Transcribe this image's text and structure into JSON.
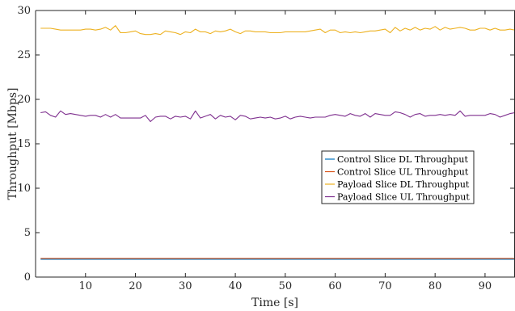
{
  "chart_data": {
    "type": "line",
    "xlabel": "Time [s]",
    "ylabel": "Throughput [Mbps]",
    "xlim": [
      0,
      96
    ],
    "ylim": [
      0,
      30
    ],
    "xticks": [
      "10",
      "20",
      "30",
      "40",
      "50",
      "60",
      "70",
      "80",
      "90"
    ],
    "yticks": [
      "0",
      "5",
      "10",
      "15",
      "20",
      "25",
      "30"
    ],
    "grid": false,
    "legend_position": "center-right",
    "x": [
      1,
      2,
      3,
      4,
      5,
      6,
      7,
      8,
      9,
      10,
      11,
      12,
      13,
      14,
      15,
      16,
      17,
      18,
      19,
      20,
      21,
      22,
      23,
      24,
      25,
      26,
      27,
      28,
      29,
      30,
      31,
      32,
      33,
      34,
      35,
      36,
      37,
      38,
      39,
      40,
      41,
      42,
      43,
      44,
      45,
      46,
      47,
      48,
      49,
      50,
      51,
      52,
      53,
      54,
      55,
      56,
      57,
      58,
      59,
      60,
      61,
      62,
      63,
      64,
      65,
      66,
      67,
      68,
      69,
      70,
      71,
      72,
      73,
      74,
      75,
      76,
      77,
      78,
      79,
      80,
      81,
      82,
      83,
      84,
      85,
      86,
      87,
      88,
      89,
      90,
      91,
      92,
      93,
      94,
      95,
      96
    ],
    "series": [
      {
        "name": "Control Slice DL Throughput",
        "color": "#0072BD",
        "values": [
          2.0,
          2.0,
          2.0,
          2.0,
          2.0,
          2.0,
          2.0,
          2.0,
          2.0,
          2.0,
          2.0,
          2.0,
          2.0,
          2.0,
          2.0,
          2.0,
          2.0,
          2.0,
          2.0,
          2.0,
          2.0,
          2.0,
          2.0,
          2.0,
          2.0,
          2.0,
          2.0,
          2.0,
          2.0,
          2.0,
          2.0,
          2.0,
          2.0,
          2.0,
          2.0,
          2.0,
          2.0,
          2.0,
          2.0,
          2.0,
          2.0,
          2.0,
          2.0,
          2.0,
          2.0,
          2.0,
          2.0,
          2.0,
          2.0,
          2.0,
          2.0,
          2.0,
          2.0,
          2.0,
          2.0,
          2.0,
          2.0,
          2.0,
          2.0,
          2.0,
          2.0,
          2.0,
          2.0,
          2.0,
          2.0,
          2.0,
          2.0,
          2.0,
          2.0,
          2.0,
          2.0,
          2.0,
          2.0,
          2.0,
          2.0,
          2.0,
          2.0,
          2.0,
          2.0,
          2.0,
          2.0,
          2.0,
          2.0,
          2.0,
          2.0,
          2.0,
          2.0,
          2.0,
          2.0,
          2.0,
          2.0,
          2.0,
          2.0,
          2.0,
          2.0,
          2.0
        ]
      },
      {
        "name": "Control Slice UL Throughput",
        "color": "#D95319",
        "values": [
          2.1,
          2.1,
          2.1,
          2.1,
          2.1,
          2.1,
          2.1,
          2.1,
          2.1,
          2.1,
          2.1,
          2.1,
          2.1,
          2.1,
          2.1,
          2.1,
          2.1,
          2.1,
          2.1,
          2.1,
          2.1,
          2.1,
          2.1,
          2.1,
          2.1,
          2.1,
          2.1,
          2.1,
          2.1,
          2.1,
          2.1,
          2.1,
          2.1,
          2.1,
          2.1,
          2.1,
          2.1,
          2.1,
          2.1,
          2.1,
          2.1,
          2.1,
          2.1,
          2.1,
          2.1,
          2.1,
          2.1,
          2.1,
          2.1,
          2.1,
          2.1,
          2.1,
          2.1,
          2.1,
          2.1,
          2.1,
          2.1,
          2.1,
          2.1,
          2.1,
          2.1,
          2.1,
          2.1,
          2.1,
          2.1,
          2.1,
          2.1,
          2.1,
          2.1,
          2.1,
          2.1,
          2.1,
          2.1,
          2.1,
          2.1,
          2.1,
          2.1,
          2.1,
          2.1,
          2.1,
          2.1,
          2.1,
          2.1,
          2.1,
          2.1,
          2.1,
          2.1,
          2.1,
          2.1,
          2.1,
          2.1,
          2.1,
          2.1,
          2.1,
          2.1,
          2.1
        ]
      },
      {
        "name": "Payload Slice DL Throughput",
        "color": "#EDB120",
        "values": [
          28.0,
          28.0,
          28.0,
          27.9,
          27.8,
          27.8,
          27.8,
          27.8,
          27.8,
          27.9,
          27.9,
          27.8,
          27.9,
          28.1,
          27.8,
          28.3,
          27.5,
          27.5,
          27.6,
          27.7,
          27.4,
          27.3,
          27.3,
          27.4,
          27.3,
          27.7,
          27.6,
          27.5,
          27.3,
          27.6,
          27.5,
          27.9,
          27.6,
          27.6,
          27.4,
          27.7,
          27.6,
          27.7,
          27.9,
          27.6,
          27.4,
          27.7,
          27.7,
          27.6,
          27.6,
          27.6,
          27.5,
          27.5,
          27.5,
          27.6,
          27.6,
          27.6,
          27.6,
          27.6,
          27.7,
          27.8,
          27.9,
          27.5,
          27.8,
          27.8,
          27.5,
          27.6,
          27.5,
          27.6,
          27.5,
          27.6,
          27.7,
          27.7,
          27.8,
          27.9,
          27.5,
          28.1,
          27.7,
          28.0,
          27.8,
          28.1,
          27.8,
          28.0,
          27.9,
          28.2,
          27.8,
          28.1,
          27.9,
          28.0,
          28.1,
          28.0,
          27.8,
          27.8,
          28.0,
          28.0,
          27.8,
          28.0,
          27.8,
          27.8,
          27.9,
          27.8
        ]
      },
      {
        "name": "Payload Slice UL Throughput",
        "color": "#7E2F8E",
        "values": [
          18.5,
          18.6,
          18.2,
          18.0,
          18.7,
          18.3,
          18.4,
          18.3,
          18.2,
          18.1,
          18.2,
          18.2,
          18.0,
          18.3,
          18.0,
          18.3,
          17.9,
          17.9,
          17.9,
          17.9,
          17.9,
          18.2,
          17.5,
          18.0,
          18.1,
          18.1,
          17.8,
          18.1,
          18.0,
          18.1,
          17.8,
          18.7,
          17.9,
          18.1,
          18.3,
          17.8,
          18.2,
          18.0,
          18.1,
          17.7,
          18.2,
          18.1,
          17.8,
          17.9,
          18.0,
          17.9,
          18.0,
          17.8,
          17.9,
          18.1,
          17.8,
          18.0,
          18.1,
          18.0,
          17.9,
          18.0,
          18.0,
          18.0,
          18.2,
          18.3,
          18.2,
          18.1,
          18.4,
          18.2,
          18.1,
          18.4,
          18.0,
          18.4,
          18.3,
          18.2,
          18.2,
          18.6,
          18.5,
          18.3,
          18.0,
          18.3,
          18.4,
          18.1,
          18.2,
          18.2,
          18.3,
          18.2,
          18.3,
          18.2,
          18.7,
          18.1,
          18.2,
          18.2,
          18.2,
          18.2,
          18.4,
          18.3,
          18.0,
          18.2,
          18.4,
          18.5
        ]
      }
    ]
  }
}
